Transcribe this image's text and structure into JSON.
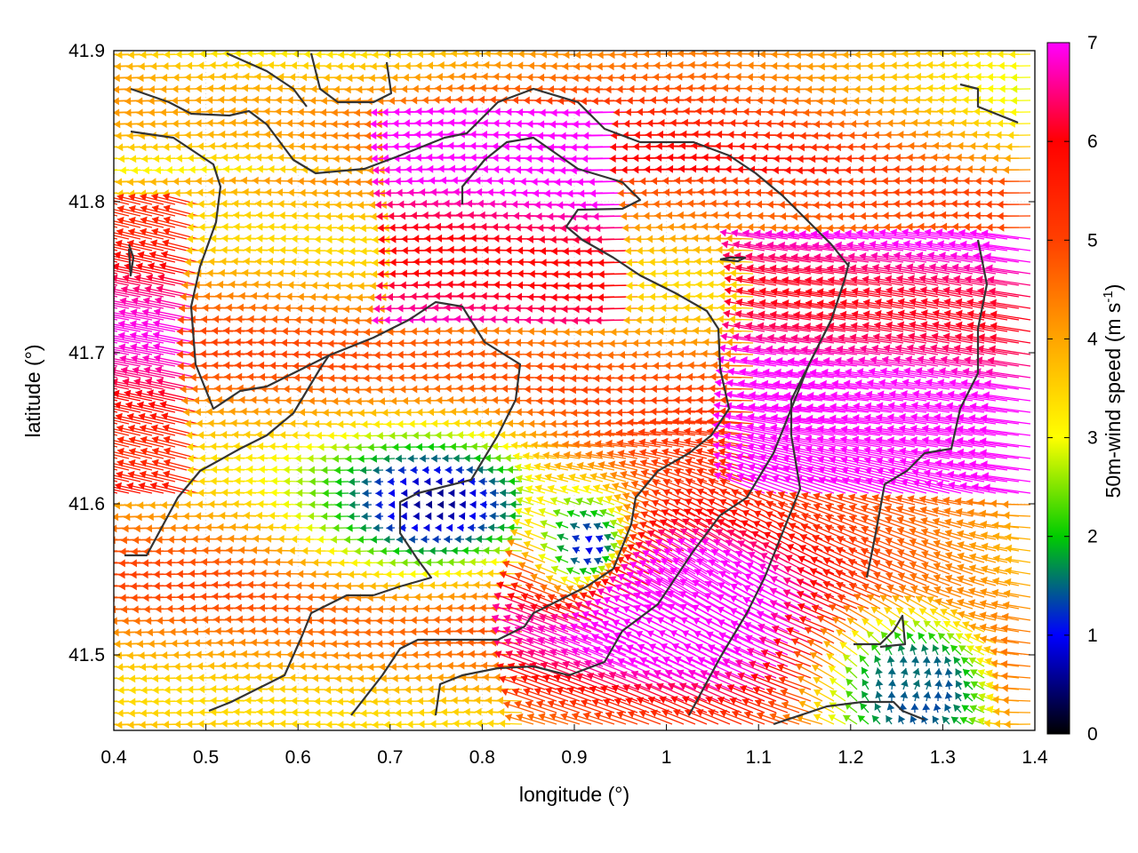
{
  "chart_data": {
    "type": "vector-field",
    "xlabel": "longitude (°)",
    "ylabel": "latitude (°)",
    "xlim": [
      0.4,
      1.4
    ],
    "ylim": [
      41.45,
      41.9
    ],
    "x_ticks": [
      "0.4",
      "0.5",
      "0.6",
      "0.7",
      "0.8",
      "0.9",
      "1",
      "1.1",
      "1.2",
      "1.3",
      "1.4"
    ],
    "y_ticks": [
      "41.5",
      "41.6",
      "41.7",
      "41.8",
      "41.9"
    ],
    "colorbar": {
      "label_main": "50m-wind speed (m s",
      "label_sup": "-1",
      "label_close": ")",
      "range": [
        0,
        7
      ],
      "ticks": [
        "0",
        "1",
        "2",
        "3",
        "4",
        "5",
        "6",
        "7"
      ],
      "palette": [
        "#000000",
        "#0000ff",
        "#00cc00",
        "#ffff00",
        "#ffa500",
        "#ff4000",
        "#ff0000",
        "#ff00ff"
      ]
    },
    "grid": true,
    "contour_color": "#333333"
  }
}
